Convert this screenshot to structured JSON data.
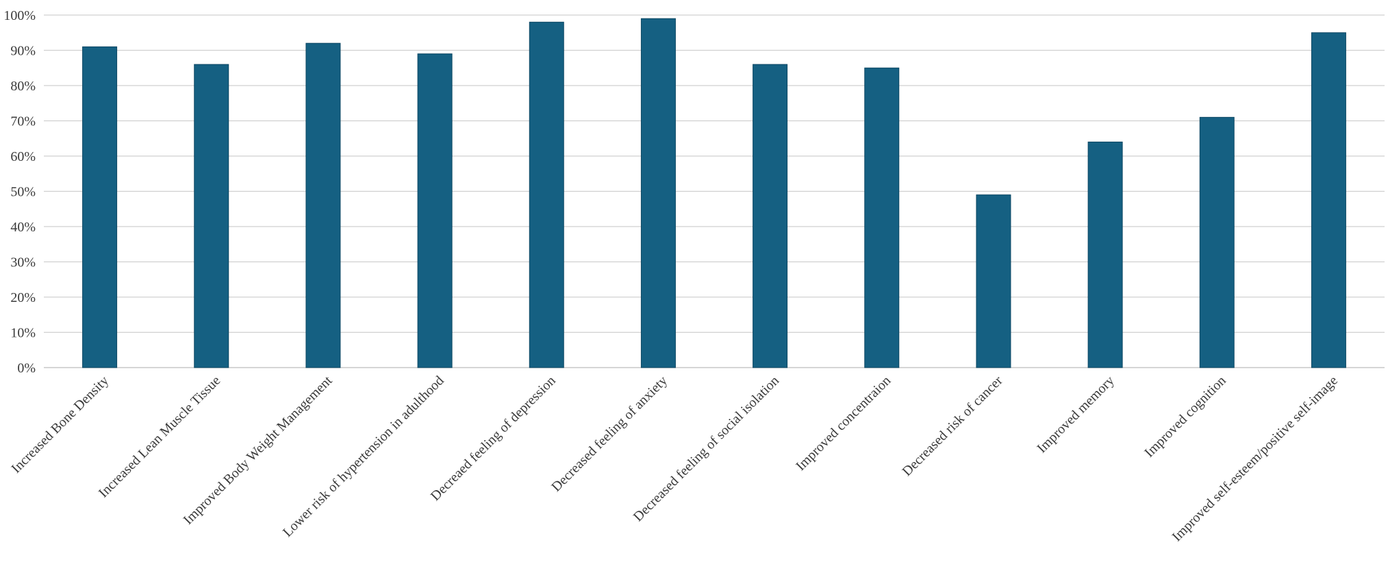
{
  "chart_data": {
    "type": "bar",
    "categories": [
      "Increased Bone Density",
      "Increased Lean Muscle Tissue",
      "Improved Body Weight Management",
      "Lower risk of hypertension in adulthood",
      "Decreaed feeling of depression",
      "Decreased feeling of anxiety",
      "Decreased feeling of social isolation",
      "Improved concentraion",
      "Decreased risk of cancer",
      "Improved memory",
      "Improved cognition",
      "Improved self-esteem/positive self-image"
    ],
    "values": [
      91,
      86,
      92,
      89,
      98,
      99,
      86,
      85,
      49,
      64,
      71,
      95
    ],
    "value_unit": "percent",
    "yticks": [
      0,
      10,
      20,
      30,
      40,
      50,
      60,
      70,
      80,
      90,
      100
    ],
    "ytick_labels": [
      "0%",
      "10%",
      "20%",
      "30%",
      "40%",
      "50%",
      "60%",
      "70%",
      "80%",
      "90%",
      "100%"
    ],
    "ylim": [
      0,
      100
    ],
    "title": "",
    "xlabel": "",
    "ylabel": "",
    "grid": true,
    "legend": "none",
    "bar_color": "#156082"
  }
}
